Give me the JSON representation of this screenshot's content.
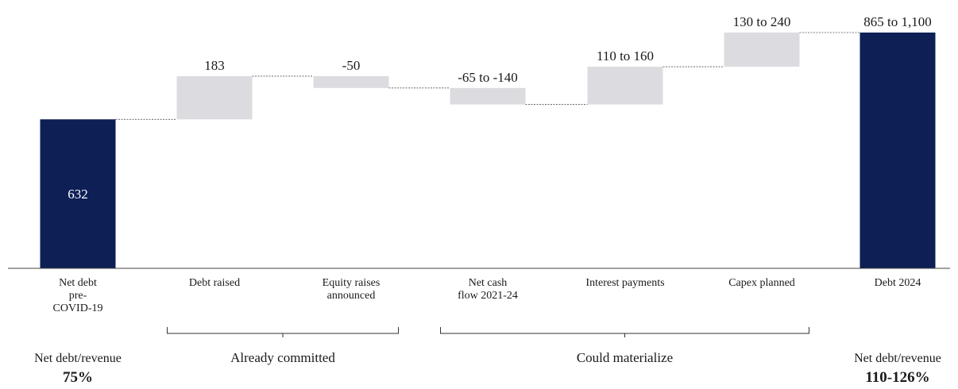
{
  "chart_data": {
    "type": "bar",
    "subtype": "waterfall",
    "title": "",
    "xlabel": "",
    "ylabel": "",
    "categories": [
      [
        "Net debt",
        "pre-",
        "COVID-19"
      ],
      [
        "Debt raised"
      ],
      [
        "Equity raises",
        "announced"
      ],
      [
        "Net cash",
        "flow 2021-24"
      ],
      [
        "Interest payments"
      ],
      [
        "Capex planned"
      ],
      [
        "Debt 2024"
      ]
    ],
    "bars": [
      {
        "kind": "total",
        "start": 0,
        "end": 632,
        "label": "632",
        "label_inside": true
      },
      {
        "kind": "delta",
        "start": 632,
        "end": 815,
        "label": "183"
      },
      {
        "kind": "delta",
        "start": 815,
        "end": 765,
        "label": "-50"
      },
      {
        "kind": "delta",
        "start": 765,
        "end": 695,
        "label": "-65 to -140"
      },
      {
        "kind": "delta",
        "start": 695,
        "end": 855,
        "label": "110 to 160"
      },
      {
        "kind": "delta",
        "start": 855,
        "end": 1000,
        "label": "130 to 240"
      },
      {
        "kind": "total",
        "start": 0,
        "end": 1000,
        "label": "865 to 1,100"
      }
    ],
    "ylim": [
      0,
      1000
    ],
    "grid": false,
    "colors": {
      "total": "#0d1f55",
      "delta": "#dcdce0",
      "connector": "#555555",
      "axis": "#444444"
    },
    "groups": [
      {
        "label": "Already committed",
        "from": 1,
        "to": 2
      },
      {
        "label": "Could materialize",
        "from": 3,
        "to": 5
      }
    ],
    "side_notes": [
      {
        "label": "Net debt/revenue",
        "value": "75%",
        "under": 0
      },
      {
        "label": "Net debt/revenue",
        "value": "110-126%",
        "under": 6
      }
    ]
  }
}
